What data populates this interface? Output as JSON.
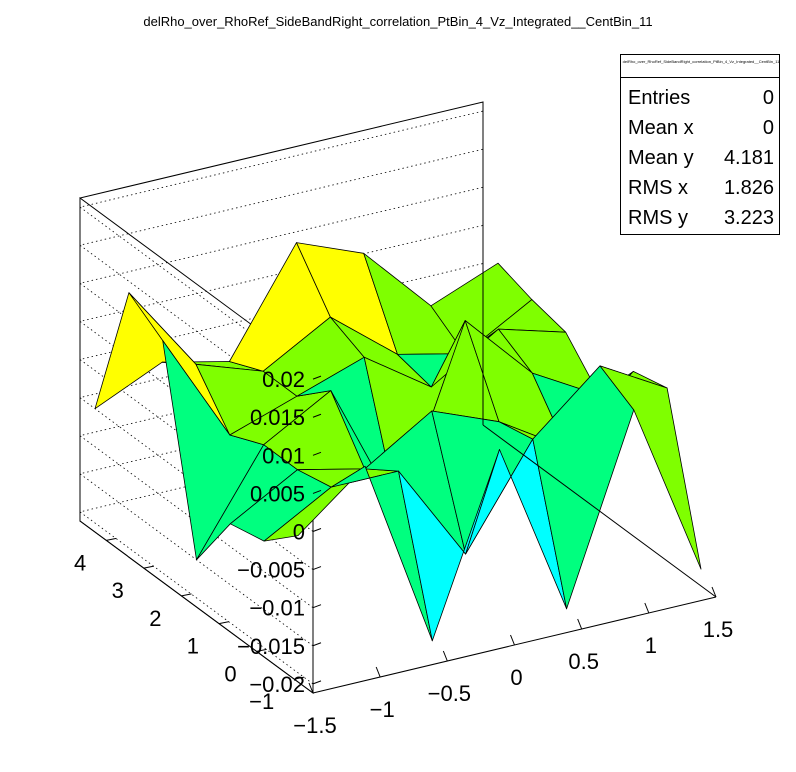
{
  "title": "delRho_over_RhoRef_SideBandRight_correlation_PtBin_4_Vz_Integrated__CentBin_11",
  "stats": {
    "name": "delRho_over_RhoRef_SideBandRight_correlation_PtBin_4_Vz_Integrated__CentBin_11",
    "rows": [
      {
        "label": "Entries",
        "value": "0"
      },
      {
        "label": "Mean x",
        "value": "0"
      },
      {
        "label": "Mean y",
        "value": "4.181"
      },
      {
        "label": "RMS x",
        "value": "1.826"
      },
      {
        "label": "RMS y",
        "value": "3.223"
      }
    ]
  },
  "chart_data": {
    "type": "surface",
    "title": "delRho_over_RhoRef_SideBandRight_correlation_PtBin_4_Vz_Integrated__CentBin_11",
    "xlabel": "",
    "ylabel": "",
    "zlabel": "",
    "x_ticks": [
      "−1.5",
      "−1",
      "−0.5",
      "0",
      "0.5",
      "1",
      "1.5"
    ],
    "y_ticks": [
      "−1",
      "0",
      "1",
      "2",
      "3",
      "4"
    ],
    "z_ticks": [
      "−0.02",
      "−0.015",
      "−0.01",
      "−0.005",
      "0",
      "0.005",
      "0.01",
      "0.015",
      "0.02"
    ],
    "xlim": [
      -1.5,
      1.5
    ],
    "ylim": [
      -1.5,
      4.7
    ],
    "zlim": [
      -0.0212,
      0.0212
    ],
    "x": [
      -1.5,
      -1.0,
      -0.5,
      0.0,
      0.5,
      1.0,
      1.5
    ],
    "y": [
      -1.1,
      -0.2,
      0.7,
      1.6,
      2.5,
      3.4,
      4.3
    ],
    "z": [
      [
        -0.002,
        0.005,
        -0.02,
        0.003,
        -0.02,
        0.004,
        -0.019
      ],
      [
        -0.006,
        -0.001,
        -0.001,
        -0.014,
        -0.001,
        0.0065,
        0.0015
      ],
      [
        -0.007,
        -0.002,
        -0.004,
        0.0015,
        -0.002,
        -0.0075,
        0.0004
      ],
      [
        -0.015,
        -0.002,
        0.003,
        -0.015,
        0.008,
        -0.001,
        -0.006
      ],
      [
        0.0105,
        -0.004,
        -0.001,
        0.002,
        -0.004,
        0.0015,
        -0.001
      ],
      [
        0.0135,
        0.002,
        -0.001,
        0.004,
        -0.003,
        -0.005,
        0.0
      ],
      [
        -0.005,
        -0.001,
        -0.003,
        0.0105,
        0.007,
        -0.002,
        0.0015
      ]
    ],
    "palette": [
      "#0000ff",
      "#00bfff",
      "#00ffff",
      "#00ff7f",
      "#7fff00",
      "#ffff00",
      "#ffbf00",
      "#ff7f00",
      "#ff0000"
    ],
    "grid": true,
    "legend": "top-right stats box"
  }
}
